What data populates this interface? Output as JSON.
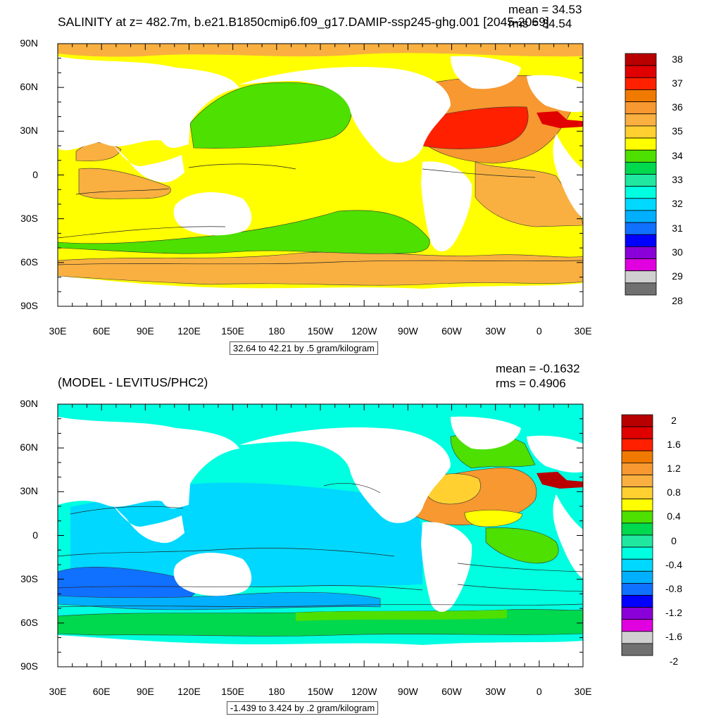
{
  "panel_top": {
    "title": "SALINITY at z= 482.7m, b.e21.B1850cmip6.f09_g17.DAMIP-ssp245-ghg.001 [2045-2069]",
    "mean": "mean = 34.53",
    "rms": "rms = 34.54",
    "info_box": "32.64 to 42.21 by .5 gram/kilogram",
    "y_ticks": [
      "90N",
      "60N",
      "30N",
      "0",
      "30S",
      "60S",
      "90S"
    ],
    "x_ticks": [
      "30E",
      "60E",
      "90E",
      "120E",
      "150E",
      "180",
      "150W",
      "120W",
      "90W",
      "60W",
      "30W",
      "0",
      "30E"
    ],
    "colorbar_labels": [
      "38",
      "37",
      "36",
      "35",
      "34",
      "33",
      "32",
      "31",
      "30",
      "29",
      "28"
    ],
    "colorbar_colors": [
      "#b80000",
      "#e00000",
      "#ff2000",
      "#f07a00",
      "#f79830",
      "#f9b040",
      "#ffd030",
      "#ffff00",
      "#4de000",
      "#00d84e",
      "#20e8a0",
      "#00ffe0",
      "#00d8ff",
      "#00b0ff",
      "#1070ff",
      "#0000ff",
      "#8a00d8",
      "#e000e0",
      "#d0d0d0",
      "#707070"
    ]
  },
  "panel_bottom": {
    "title": "(MODEL - LEVITUS/PHC2)",
    "mean": "mean = -0.1632",
    "rms": "rms = 0.4906",
    "info_box": "-1.439 to 3.424 by .2 gram/kilogram",
    "y_ticks": [
      "90N",
      "60N",
      "30N",
      "0",
      "30S",
      "60S",
      "90S"
    ],
    "x_ticks": [
      "30E",
      "60E",
      "90E",
      "120E",
      "150E",
      "180",
      "150W",
      "120W",
      "90W",
      "60W",
      "30W",
      "0",
      "30E"
    ],
    "colorbar_labels": [
      "2",
      "1.6",
      "1.2",
      "0.8",
      "0.4",
      "0",
      "-0.4",
      "-0.8",
      "-1.2",
      "-1.6",
      "-2"
    ],
    "colorbar_colors": [
      "#b80000",
      "#e00000",
      "#ff2000",
      "#f07a00",
      "#f79830",
      "#f9b040",
      "#ffd030",
      "#ffff00",
      "#4de000",
      "#00d84e",
      "#20e8a0",
      "#00ffe0",
      "#00d8ff",
      "#00b0ff",
      "#1070ff",
      "#0000ff",
      "#8a00d8",
      "#e000e0",
      "#d0d0d0",
      "#707070"
    ]
  }
}
